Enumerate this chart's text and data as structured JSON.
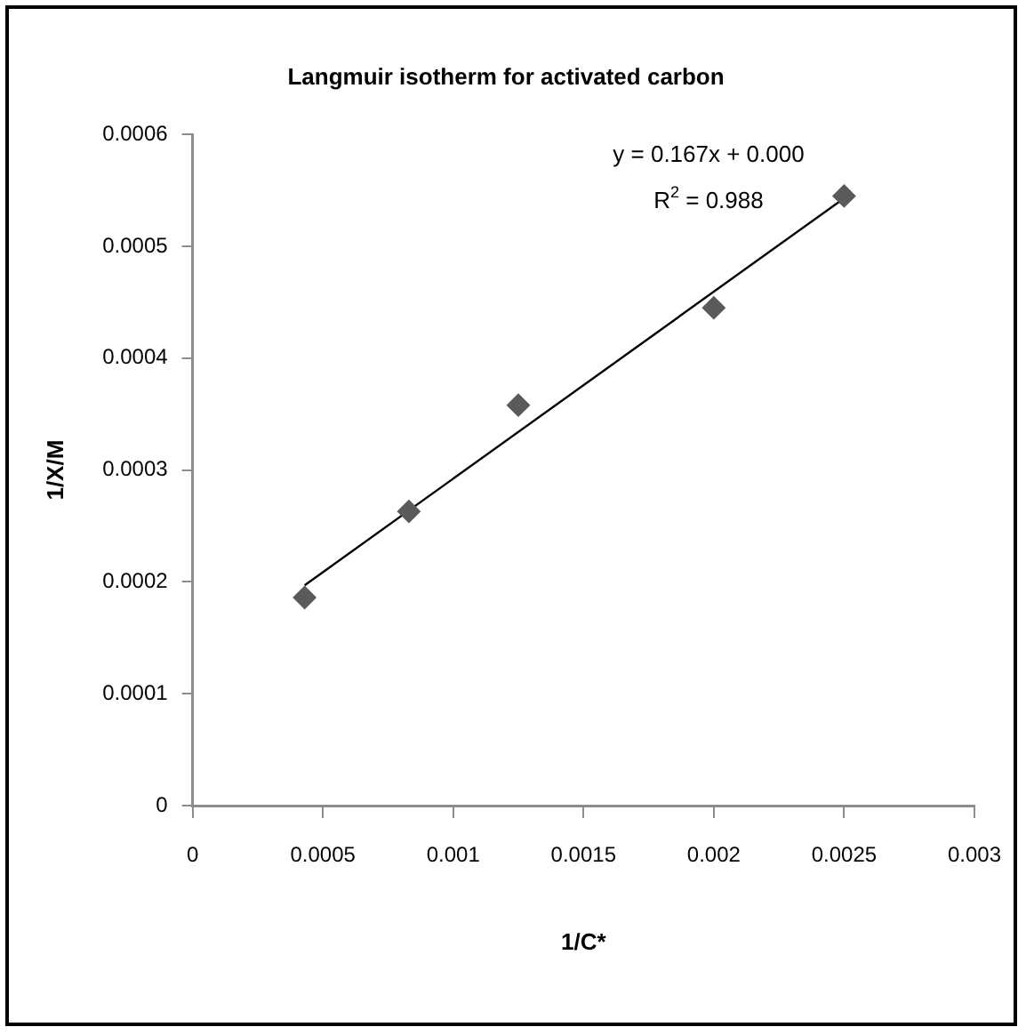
{
  "chart_data": {
    "type": "scatter",
    "title": "Langmuir isotherm for activated carbon",
    "xlabel": "1/C*",
    "ylabel": "1/X/M",
    "annotations": [
      "y = 0.167x + 0.000",
      "R$^{2}$ = 0.988"
    ],
    "series": [
      {
        "color": "#5a5a5a",
        "x": [
          0.00043,
          0.00083,
          0.00125,
          0.002,
          0.0025
        ],
        "values": [
          0.000186,
          0.000263,
          0.000358,
          0.000445,
          0.000545
        ]
      },
      {
        "type": "line",
        "marker": "none",
        "color": "#000000",
        "x": [
          0.00043,
          0.0025
        ],
        "values": [
          0.000197,
          0.000543
        ]
      }
    ],
    "xlim": [
      0,
      0.003
    ],
    "xticks": [
      0,
      0.0005,
      0.001,
      0.0015,
      0.002,
      0.0025,
      0.003
    ],
    "ylim": [
      0,
      0.0006
    ],
    "yticks": [
      0,
      0.0001,
      0.0002,
      0.0003,
      0.0004,
      0.0005,
      0.0006
    ],
    "grid": false,
    "legend": false,
    "marker": "diamond",
    "line_style": "solid"
  }
}
